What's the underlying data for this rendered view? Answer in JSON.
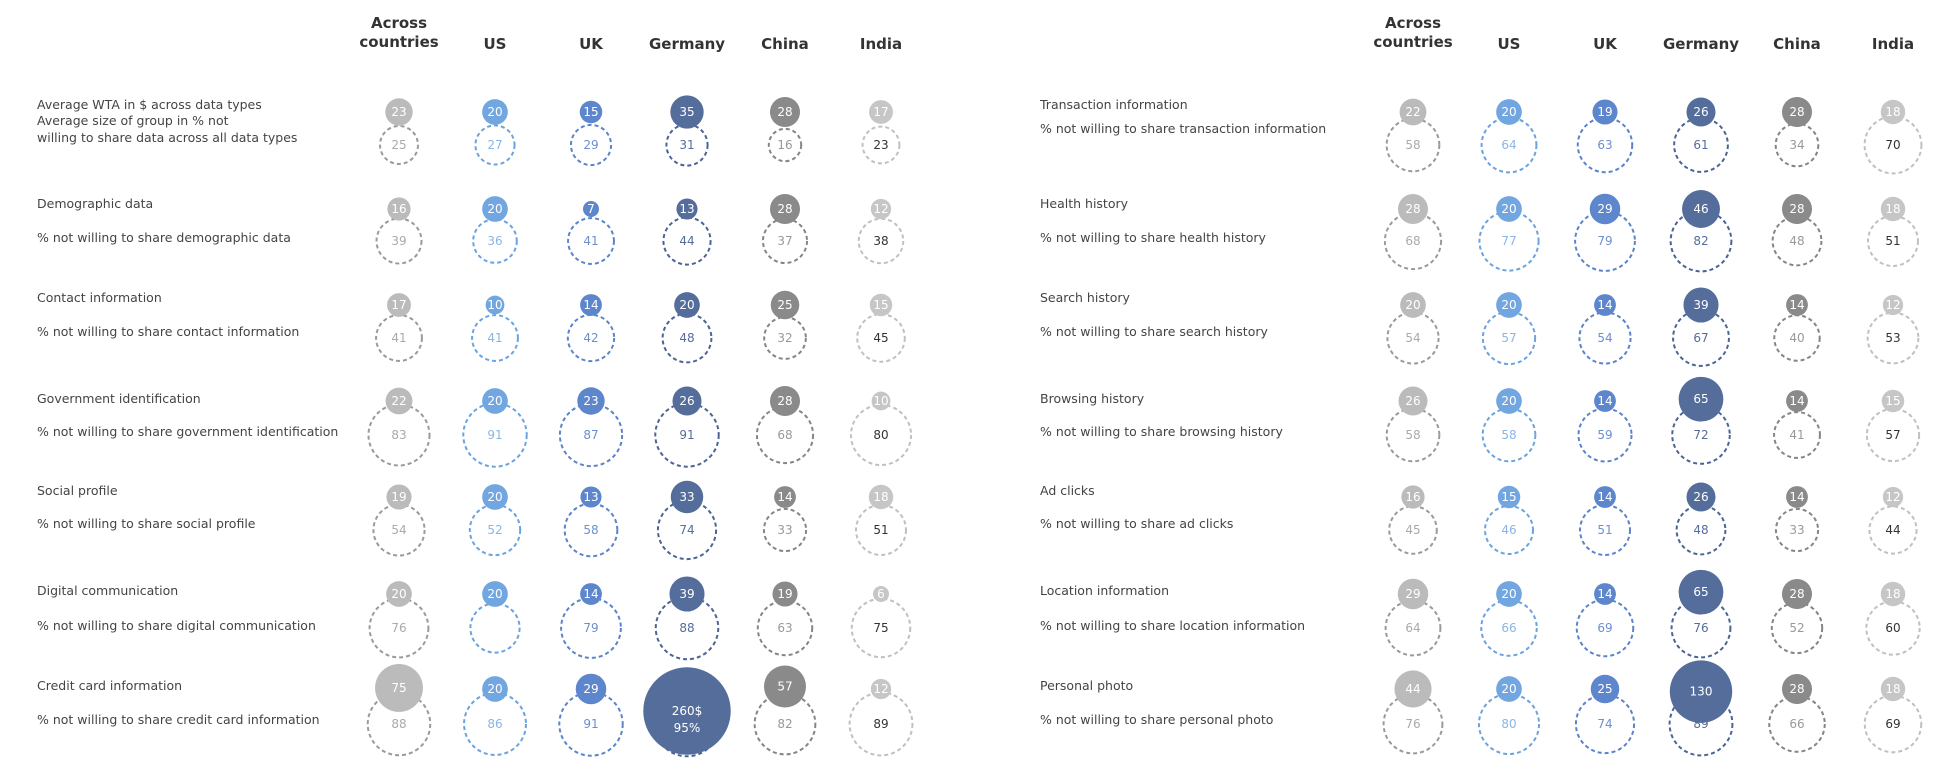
{
  "colors": {
    "across": "#bbbbbb",
    "us": "#72a6e0",
    "uk": "#5d86cc",
    "germany": "#556d9b",
    "china": "#8a8a8a",
    "india": "#c6c6c6",
    "across_ring": "#9a9a9a",
    "us_ring": "#6aa3e0",
    "uk_ring": "#5b83cc",
    "germany_ring": "#4a6495",
    "china_ring": "#858585",
    "india_ring": "#c0c0c0",
    "across_text": "#aaaaaa",
    "us_text": "#8bb5e6",
    "uk_text": "#6c8fd0",
    "germany_text": "#556d9b",
    "china_text": "#999999",
    "india_text": "#333333"
  },
  "chart_data": [
    {
      "type": "bubble-table",
      "columns": [
        "Across\ncountries",
        "US",
        "UK",
        "Germany",
        "China",
        "India"
      ],
      "rows": [
        {
          "label": "Average WTA in $ across data types",
          "sublabel": "Average size of group in % not\nwilling to share data across all data types",
          "wta": [
            "23",
            "20",
            "15",
            "35",
            "28",
            "17"
          ],
          "pct": [
            "25",
            "27",
            "29",
            "31",
            "16",
            "23"
          ]
        },
        {
          "label": "Demographic data",
          "sublabel": "% not willing to share demographic data",
          "wta": [
            "16",
            "20",
            "7",
            "13",
            "28",
            "12"
          ],
          "pct": [
            "39",
            "36",
            "41",
            "44",
            "37",
            "38"
          ]
        },
        {
          "label": "Contact information",
          "sublabel": "% not willing to share contact information",
          "wta": [
            "17",
            "10",
            "14",
            "20",
            "25",
            "15"
          ],
          "pct": [
            "41",
            "41",
            "42",
            "48",
            "32",
            "45"
          ]
        },
        {
          "label": "Government identification",
          "sublabel": "% not willing to share government identification",
          "wta": [
            "22",
            "20",
            "23",
            "26",
            "28",
            "10"
          ],
          "pct": [
            "83",
            "91",
            "87",
            "91",
            "68",
            "80"
          ]
        },
        {
          "label": "Social profile",
          "sublabel": "% not willing to share social profile",
          "wta": [
            "19",
            "20",
            "13",
            "33",
            "14",
            "18"
          ],
          "pct": [
            "54",
            "52",
            "58",
            "74",
            "33",
            "51"
          ]
        },
        {
          "label": "Digital communication",
          "sublabel": "% not willing to share digital communication",
          "wta": [
            "20",
            "20",
            "14",
            "39",
            "19",
            "6"
          ],
          "pct": [
            "76",
            "",
            "79",
            "88",
            "63",
            "75"
          ]
        },
        {
          "label": "Credit card information",
          "sublabel": "% not willing to share credit card information",
          "wta": [
            "75",
            "20",
            "29",
            "260$",
            "57",
            "12"
          ],
          "pct": [
            "88",
            "86",
            "91",
            "95%",
            "82",
            "89"
          ]
        }
      ]
    },
    {
      "type": "bubble-table",
      "columns": [
        "Across\ncountries",
        "US",
        "UK",
        "Germany",
        "China",
        "India"
      ],
      "rows": [
        {
          "label": "Transaction information",
          "sublabel": "% not willing to share transaction information",
          "wta": [
            "22",
            "20",
            "19",
            "26",
            "28",
            "18"
          ],
          "pct": [
            "58",
            "64",
            "63",
            "61",
            "34",
            "70"
          ]
        },
        {
          "label": "Health history",
          "sublabel": "% not willing to share health history",
          "wta": [
            "28",
            "20",
            "29",
            "46",
            "28",
            "18"
          ],
          "pct": [
            "68",
            "77",
            "79",
            "82",
            "48",
            "51"
          ]
        },
        {
          "label": "Search history",
          "sublabel": "% not willing to share search history",
          "wta": [
            "20",
            "20",
            "14",
            "39",
            "14",
            "12"
          ],
          "pct": [
            "54",
            "57",
            "54",
            "67",
            "40",
            "53"
          ]
        },
        {
          "label": "Browsing history",
          "sublabel": "% not willing to share browsing history",
          "wta": [
            "26",
            "20",
            "14",
            "65",
            "14",
            "15"
          ],
          "pct": [
            "58",
            "58",
            "59",
            "72",
            "41",
            "57"
          ]
        },
        {
          "label": "Ad clicks",
          "sublabel": "% not willing to share ad clicks",
          "wta": [
            "16",
            "15",
            "14",
            "26",
            "14",
            "12"
          ],
          "pct": [
            "45",
            "46",
            "51",
            "48",
            "33",
            "44"
          ]
        },
        {
          "label": "Location information",
          "sublabel": "% not willing to share location information",
          "wta": [
            "29",
            "20",
            "14",
            "65",
            "28",
            "18"
          ],
          "pct": [
            "64",
            "66",
            "69",
            "76",
            "52",
            "60"
          ]
        },
        {
          "label": "Personal photo",
          "sublabel": "% not willing to share personal photo",
          "wta": [
            "44",
            "20",
            "25",
            "130",
            "28",
            "18"
          ],
          "pct": [
            "76",
            "80",
            "74",
            "89",
            "66",
            "69"
          ]
        }
      ]
    }
  ]
}
